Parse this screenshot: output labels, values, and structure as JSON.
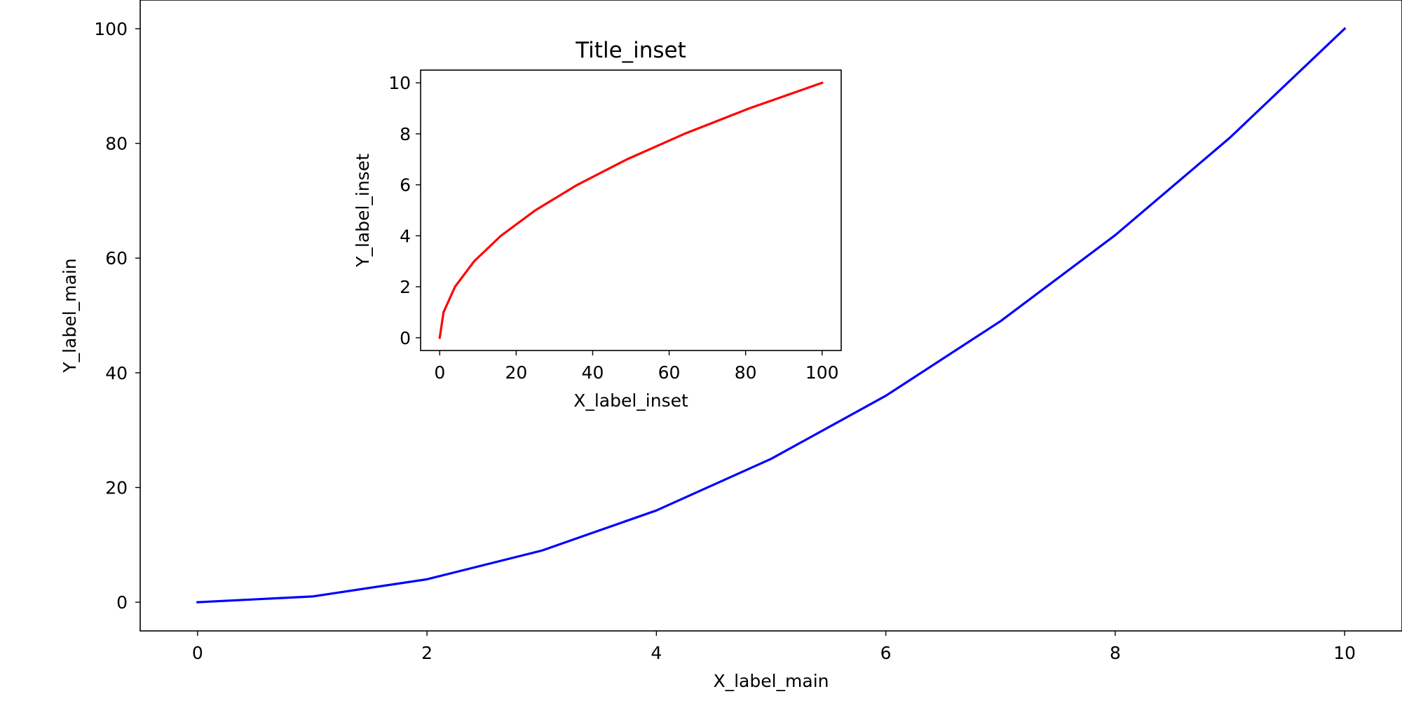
{
  "chart_data": [
    {
      "id": "main",
      "type": "line",
      "title": "",
      "xlabel": "X_label_main",
      "ylabel": "Y_label_main",
      "xlim": [
        -0.5,
        10.5
      ],
      "ylim": [
        -5,
        105
      ],
      "xticks": [
        0,
        2,
        4,
        6,
        8,
        10
      ],
      "yticks": [
        0,
        20,
        40,
        60,
        80,
        100
      ],
      "grid": false,
      "series": [
        {
          "color": "#0000ff",
          "x": [
            0,
            1,
            2,
            3,
            4,
            5,
            6,
            7,
            8,
            9,
            10
          ],
          "y": [
            0,
            1,
            4,
            9,
            16,
            25,
            36,
            49,
            64,
            81,
            100
          ]
        }
      ]
    },
    {
      "id": "inset",
      "type": "line",
      "title": "Title_inset",
      "xlabel": "X_label_inset",
      "ylabel": "Y_label_inset",
      "xlim": [
        -5,
        105
      ],
      "ylim": [
        -0.5,
        10.5
      ],
      "xticks": [
        0,
        20,
        40,
        60,
        80,
        100
      ],
      "yticks": [
        0,
        2,
        4,
        6,
        8,
        10
      ],
      "grid": false,
      "series": [
        {
          "color": "#ff0000",
          "x": [
            0,
            1,
            4,
            9,
            16,
            25,
            36,
            49,
            64,
            81,
            100
          ],
          "y": [
            0,
            1,
            2,
            3,
            4,
            5,
            6,
            7,
            8,
            9,
            10
          ]
        }
      ]
    }
  ]
}
